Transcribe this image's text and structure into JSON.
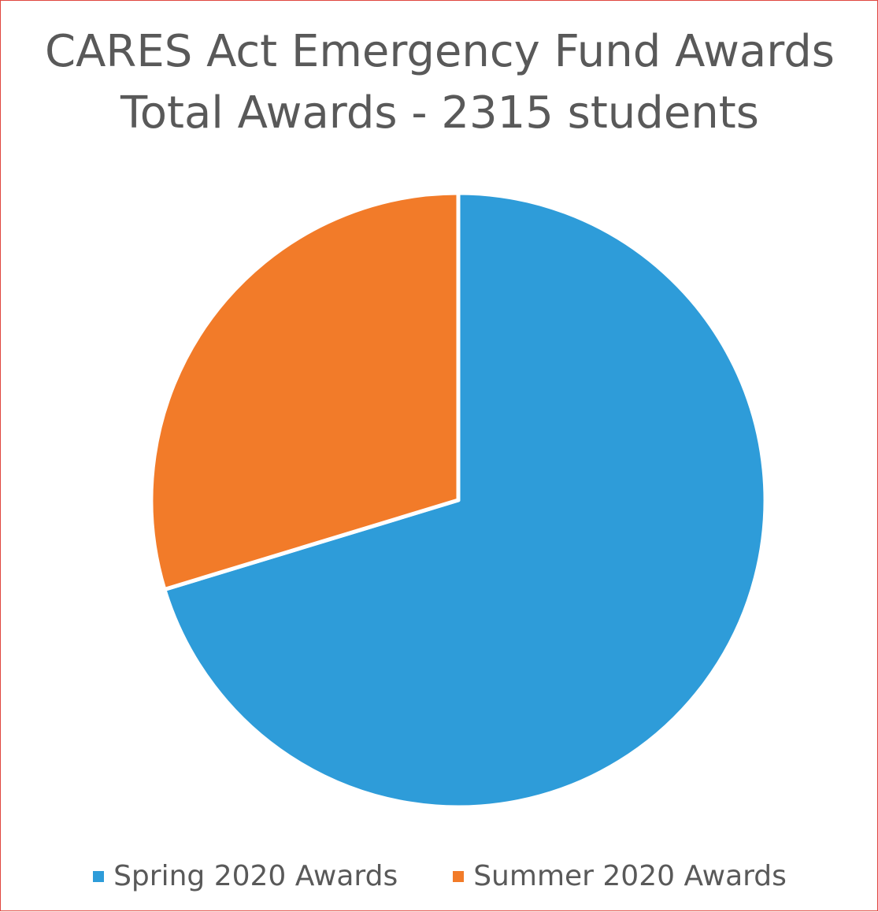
{
  "chart_data": {
    "type": "pie",
    "title_lines": [
      "CARES Act Emergency Fund Awards",
      "Total Awards - 2315 students"
    ],
    "categories": [
      "Spring 2020 Awards",
      "Summer 2020 Awards"
    ],
    "values": [
      0.703,
      0.297
    ],
    "colors": [
      "#2e9cd9",
      "#f27b29"
    ],
    "start_category": "Spring 2020 Awards",
    "direction": "clockwise",
    "legend_position": "bottom"
  }
}
